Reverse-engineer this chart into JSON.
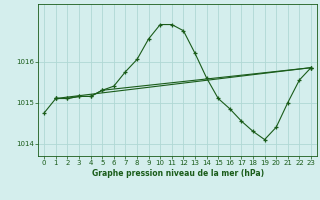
{
  "title": "Graphe pression niveau de la mer (hPa)",
  "background_color": "#d4eeed",
  "grid_color": "#b0d8d4",
  "line_color": "#1a5c1a",
  "xlim": [
    -0.5,
    23.5
  ],
  "ylim": [
    1013.7,
    1017.4
  ],
  "yticks": [
    1014,
    1015,
    1016
  ],
  "xticks": [
    0,
    1,
    2,
    3,
    4,
    5,
    6,
    7,
    8,
    9,
    10,
    11,
    12,
    13,
    14,
    15,
    16,
    17,
    18,
    19,
    20,
    21,
    22,
    23
  ],
  "series": [
    {
      "x": [
        0,
        1,
        2,
        3,
        4,
        5,
        6,
        7,
        8,
        9,
        10,
        11,
        12,
        13,
        14,
        15,
        16,
        17,
        18,
        19,
        20,
        21,
        22,
        23
      ],
      "y": [
        1014.75,
        1015.1,
        1015.1,
        1015.15,
        1015.15,
        1015.3,
        1015.4,
        1015.75,
        1016.05,
        1016.55,
        1016.9,
        1016.9,
        1016.75,
        1016.2,
        1015.6,
        1015.1,
        1014.85,
        1014.55,
        1014.3,
        1014.1,
        1014.4,
        1015.0,
        1015.55,
        1015.85
      ]
    },
    {
      "x": [
        1,
        2,
        3,
        4,
        5,
        23
      ],
      "y": [
        1015.1,
        1015.1,
        1015.15,
        1015.15,
        1015.3,
        1015.85
      ]
    },
    {
      "x": [
        1,
        23
      ],
      "y": [
        1015.1,
        1015.85
      ]
    }
  ]
}
